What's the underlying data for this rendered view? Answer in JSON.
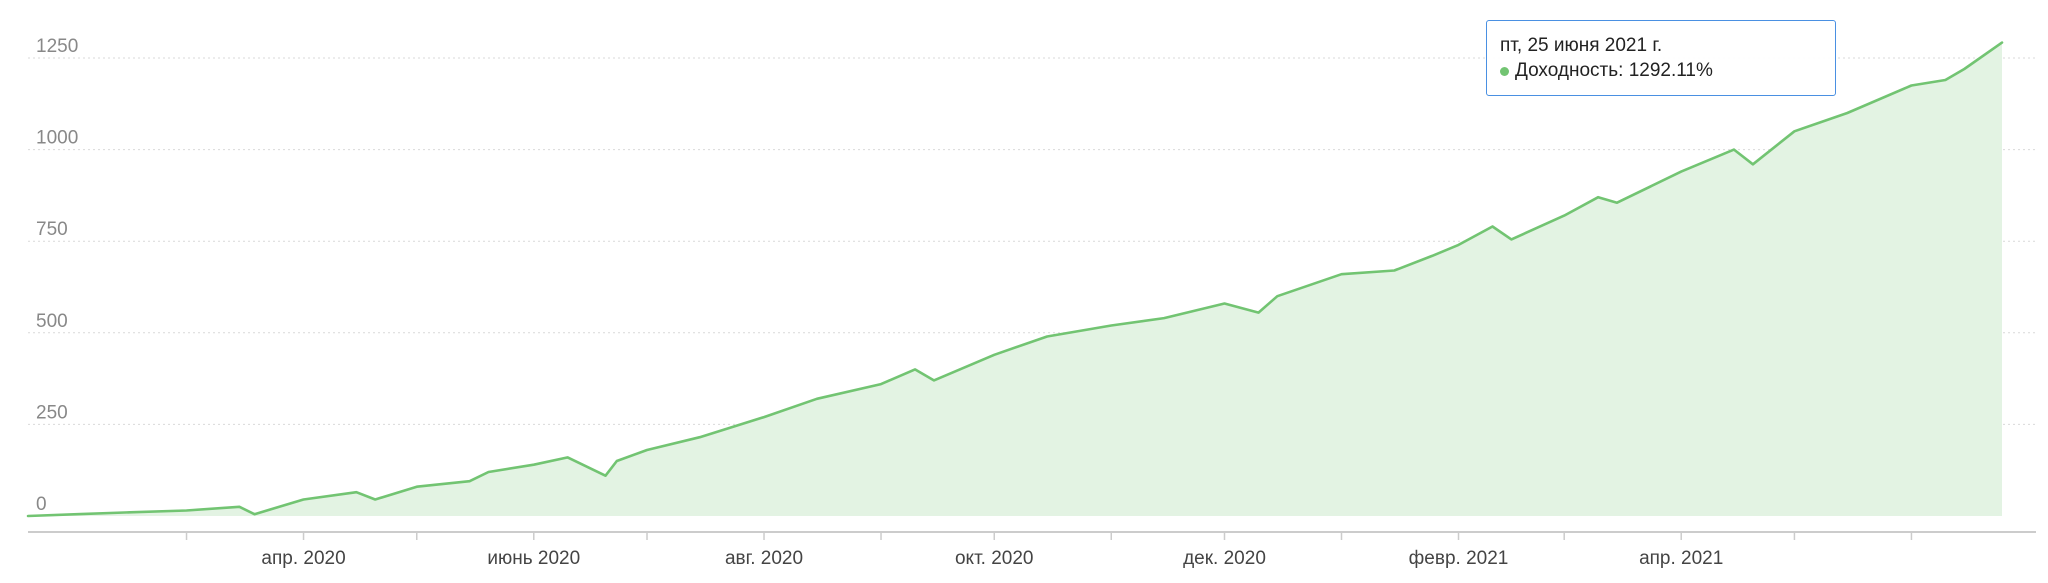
{
  "colors": {
    "line": "#72c472",
    "area": "#e3f3e3",
    "grid": "#d9d9d9",
    "axis": "#cccccc",
    "tooltip_border": "#4a90e2"
  },
  "tooltip": {
    "date": "пт, 25 июня 2021 г.",
    "series_label": "Доходность",
    "value_text": "1292.11%"
  },
  "chart_data": {
    "type": "area",
    "title": "",
    "xlabel": "",
    "ylabel": "",
    "ylim": [
      0,
      1250
    ],
    "grid": true,
    "y_ticks": [
      0,
      250,
      500,
      750,
      1000,
      1250
    ],
    "y_tick_labels": [
      "0",
      "250",
      "500",
      "750",
      "1000",
      "1250"
    ],
    "x_tick_labels": [
      "апр. 2020",
      "июнь 2020",
      "авг. 2020",
      "окт. 2020",
      "дек. 2020",
      "февр. 2021",
      "апр. 2021"
    ],
    "x_tick_dates": [
      "2020-04-01",
      "2020-06-01",
      "2020-08-01",
      "2020-10-01",
      "2020-12-01",
      "2021-02-01",
      "2021-04-01"
    ],
    "x_range": [
      "2020-01-19",
      "2021-07-04"
    ],
    "series": [
      {
        "name": "Доходность",
        "x": [
          "2020-01-19",
          "2020-02-01",
          "2020-02-15",
          "2020-03-01",
          "2020-03-15",
          "2020-03-19",
          "2020-04-01",
          "2020-04-15",
          "2020-04-20",
          "2020-05-01",
          "2020-05-15",
          "2020-05-20",
          "2020-06-01",
          "2020-06-10",
          "2020-06-20",
          "2020-06-23",
          "2020-07-01",
          "2020-07-15",
          "2020-08-01",
          "2020-08-15",
          "2020-09-01",
          "2020-09-10",
          "2020-09-15",
          "2020-10-01",
          "2020-10-15",
          "2020-11-01",
          "2020-11-15",
          "2020-12-01",
          "2020-12-10",
          "2020-12-15",
          "2021-01-01",
          "2021-01-15",
          "2021-01-25",
          "2021-02-01",
          "2021-02-10",
          "2021-02-15",
          "2021-03-01",
          "2021-03-10",
          "2021-03-15",
          "2021-04-01",
          "2021-04-15",
          "2021-04-20",
          "2021-05-01",
          "2021-05-15",
          "2021-06-01",
          "2021-06-10",
          "2021-06-15",
          "2021-06-25"
        ],
        "y": [
          0,
          5,
          10,
          15,
          25,
          5,
          45,
          65,
          45,
          80,
          95,
          120,
          140,
          160,
          110,
          150,
          180,
          215,
          270,
          320,
          360,
          400,
          370,
          440,
          490,
          520,
          540,
          580,
          555,
          600,
          660,
          670,
          710,
          740,
          790,
          755,
          820,
          870,
          855,
          940,
          1000,
          960,
          1050,
          1100,
          1175,
          1190,
          1220,
          1292
        ]
      }
    ]
  }
}
